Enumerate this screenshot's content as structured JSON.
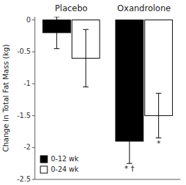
{
  "chart_data": {
    "type": "bar",
    "categories": [
      "Placebo",
      "Oxandrolone"
    ],
    "series": [
      {
        "name": "0-12 wk",
        "color": "black",
        "values": [
          -0.2,
          -1.9
        ],
        "errors": [
          0.25,
          0.35
        ]
      },
      {
        "name": "0-24 wk",
        "color": "white",
        "values": [
          -0.6,
          -1.5
        ],
        "errors": [
          0.45,
          0.35
        ]
      }
    ],
    "ylabel": "Change in Total Fat Mass (kg)",
    "ylim": [
      -2.5,
      0.05
    ],
    "yticks": [
      0,
      -0.5,
      -1,
      -1.5,
      -2,
      -2.5
    ],
    "annotations": [
      {
        "text": "* †",
        "series": 0,
        "category": 1
      },
      {
        "text": "*",
        "series": 1,
        "category": 1
      }
    ],
    "legend": "lower left",
    "grid": false
  }
}
